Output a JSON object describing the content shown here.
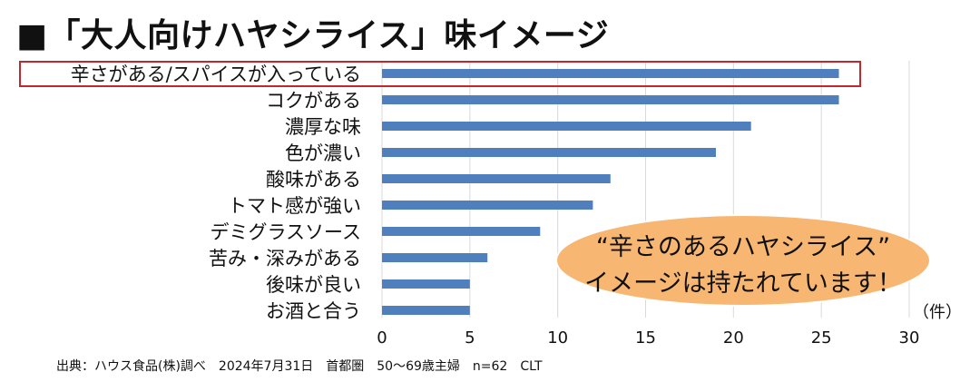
{
  "title": "■「大人向けハヤシライス」味イメージ",
  "source": "出典：ハウス食品(株)調べ　2024年7月31日　首都圏　50～69歳主婦　n=62　CLT",
  "callout": {
    "line1": "“辛さのあるハヤシライス”",
    "line2": "イメージは持たれています！"
  },
  "colors": {
    "bar": "#4f7fbc",
    "highlight_box": "#c0282d",
    "callout_fill": "#f7b772"
  },
  "chart_data": {
    "type": "bar",
    "orientation": "horizontal",
    "categories": [
      "辛さがある/スパイスが入っている",
      "コクがある",
      "濃厚な味",
      "色が濃い",
      "酸味がある",
      "トマト感が強い",
      "デミグラスソース",
      "苦み・深みがある",
      "後味が良い",
      "お酒と合う"
    ],
    "values": [
      26,
      26,
      21,
      19,
      13,
      12,
      9,
      6,
      5,
      5
    ],
    "xlim": [
      0,
      30
    ],
    "xticks": [
      0,
      5,
      10,
      15,
      20,
      25,
      30
    ],
    "unit_label": "（件）",
    "grid": "vertical",
    "highlighted_category": "辛さがある/スパイスが入っている"
  }
}
